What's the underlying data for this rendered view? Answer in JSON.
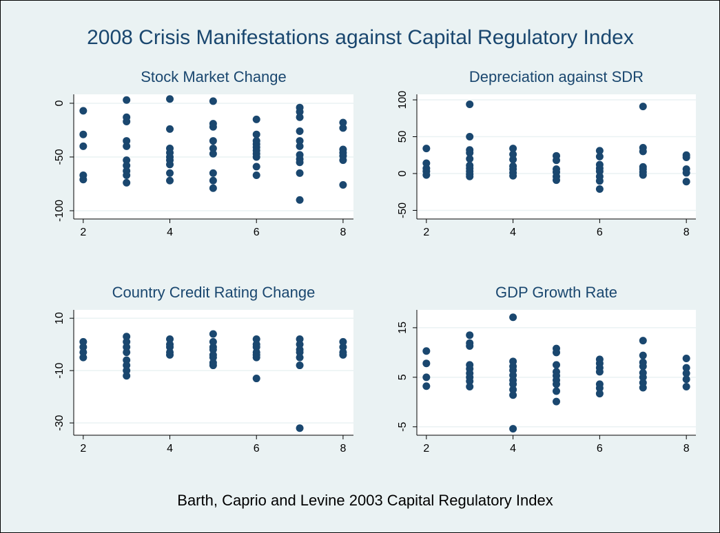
{
  "title": "2008 Crisis Manifestations against Capital Regulatory Index",
  "caption": "Barth, Caprio and Levine 2003 Capital Regulatory Index",
  "chart_data": [
    {
      "type": "scatter",
      "title": "Stock Market Change",
      "color": "#1a476f",
      "grid": true,
      "x": [
        2,
        2,
        2,
        2,
        2,
        3,
        3,
        3,
        3,
        3,
        3,
        3,
        3,
        3,
        3,
        4,
        4,
        4,
        4,
        4,
        4,
        4,
        4,
        4,
        5,
        5,
        5,
        5,
        5,
        5,
        5,
        5,
        5,
        6,
        6,
        6,
        6,
        6,
        6,
        6,
        6,
        6,
        6,
        7,
        7,
        7,
        7,
        7,
        7,
        7,
        7,
        7,
        7,
        7,
        8,
        8,
        8,
        8,
        8,
        8,
        8
      ],
      "values": [
        -7,
        -29,
        -40,
        -67,
        -71,
        3,
        -13,
        -17,
        -35,
        -40,
        -53,
        -58,
        -63,
        -67,
        -74,
        4,
        -24,
        -42,
        -46,
        -50,
        -53,
        -57,
        -65,
        -72,
        2,
        -19,
        -22,
        -35,
        -42,
        -47,
        -65,
        -72,
        -79,
        -15,
        -29,
        -35,
        -38,
        -41,
        -44,
        -47,
        -50,
        -59,
        -67,
        -4,
        -8,
        -13,
        -26,
        -35,
        -40,
        -48,
        -52,
        -55,
        -65,
        -90,
        -18,
        -23,
        -43,
        -46,
        -49,
        -53,
        -76
      ],
      "xlim": [
        1.78,
        8.24
      ],
      "ylim": [
        -107.7,
        8.3
      ],
      "xticks": [
        2,
        4,
        6,
        8
      ],
      "yticks": [
        -100,
        -50,
        0
      ]
    },
    {
      "type": "scatter",
      "title": "Depreciation against SDR",
      "color": "#1a476f",
      "grid": true,
      "x": [
        2,
        2,
        2,
        2,
        2,
        3,
        3,
        3,
        3,
        3,
        3,
        3,
        3,
        3,
        3,
        4,
        4,
        4,
        4,
        4,
        4,
        4,
        5,
        5,
        5,
        5,
        5,
        5,
        6,
        6,
        6,
        6,
        6,
        6,
        6,
        6,
        7,
        7,
        7,
        7,
        7,
        7,
        7,
        8,
        8,
        8,
        8,
        8
      ],
      "values": [
        34,
        14,
        7,
        3,
        -2,
        94,
        50,
        32,
        28,
        20,
        11,
        7,
        3,
        -1,
        -4,
        34,
        26,
        19,
        10,
        6,
        1,
        -3,
        24,
        18,
        6,
        2,
        -4,
        -9,
        31,
        23,
        12,
        7,
        3,
        -4,
        -10,
        -21,
        91,
        35,
        30,
        9,
        6,
        2,
        -2,
        25,
        22,
        6,
        1,
        -11
      ],
      "xlim": [
        1.78,
        8.22
      ],
      "ylim": [
        -61.7,
        107.5
      ],
      "xticks": [
        2,
        4,
        6,
        8
      ],
      "yticks": [
        -50,
        0,
        50,
        100
      ]
    },
    {
      "type": "scatter",
      "title": "Country Credit Rating Change",
      "color": "#1a476f",
      "grid": true,
      "x": [
        2,
        2,
        2,
        2,
        3,
        3,
        3,
        3,
        3,
        3,
        3,
        3,
        4,
        4,
        4,
        4,
        4,
        5,
        5,
        5,
        5,
        5,
        5,
        5,
        5,
        6,
        6,
        6,
        6,
        6,
        6,
        6,
        7,
        7,
        7,
        7,
        7,
        7,
        7,
        8,
        8,
        8,
        8
      ],
      "values": [
        1,
        -1,
        -3,
        -5,
        3,
        1,
        -1,
        -3,
        -6,
        -8,
        -10,
        -12,
        2,
        0,
        -1,
        -3,
        -4,
        4,
        1,
        -1,
        -2,
        -4,
        -5,
        -7,
        -8,
        2,
        0,
        -1,
        -3,
        -4,
        -5,
        -13,
        2,
        0,
        -2,
        -3,
        -5,
        -8,
        -32,
        1,
        -1,
        -3,
        -4
      ],
      "xlim": [
        1.78,
        8.24
      ],
      "ylim": [
        -34.7,
        13.2
      ],
      "xticks": [
        2,
        4,
        6,
        8
      ],
      "yticks": [
        -30,
        -10,
        10
      ]
    },
    {
      "type": "scatter",
      "title": "GDP Growth Rate",
      "color": "#1a476f",
      "grid": true,
      "x": [
        2,
        2,
        2,
        2,
        3,
        3,
        3,
        3,
        3,
        3,
        3,
        3,
        3,
        4,
        4,
        4,
        4,
        4,
        4,
        4,
        4,
        4,
        4,
        5,
        5,
        5,
        5,
        5,
        5,
        5,
        5,
        5,
        6,
        6,
        6,
        6,
        6,
        6,
        6,
        7,
        7,
        7,
        7,
        7,
        7,
        7,
        7,
        8,
        8,
        8,
        8,
        8
      ],
      "values": [
        10.3,
        7.8,
        5,
        3.2,
        13.5,
        11.9,
        11.3,
        7.5,
        6.7,
        5.8,
        5,
        4.2,
        3.1,
        17.1,
        8.2,
        7.2,
        6.4,
        5.4,
        4.4,
        3.6,
        2.5,
        1.4,
        -5.4,
        10.8,
        10,
        7.5,
        6.1,
        5.3,
        4.4,
        3.6,
        2.2,
        0.1,
        8.6,
        7.8,
        6.9,
        6.1,
        3.6,
        2.8,
        1.7,
        12.4,
        9.4,
        8,
        7.2,
        5.9,
        5,
        3.9,
        2.9,
        8.8,
        6.9,
        5.8,
        4.6,
        3.1
      ],
      "xlim": [
        1.78,
        8.22
      ],
      "ylim": [
        -6.7,
        18.6
      ],
      "xticks": [
        2,
        4,
        6,
        8
      ],
      "yticks": [
        -5,
        5,
        15
      ]
    }
  ]
}
